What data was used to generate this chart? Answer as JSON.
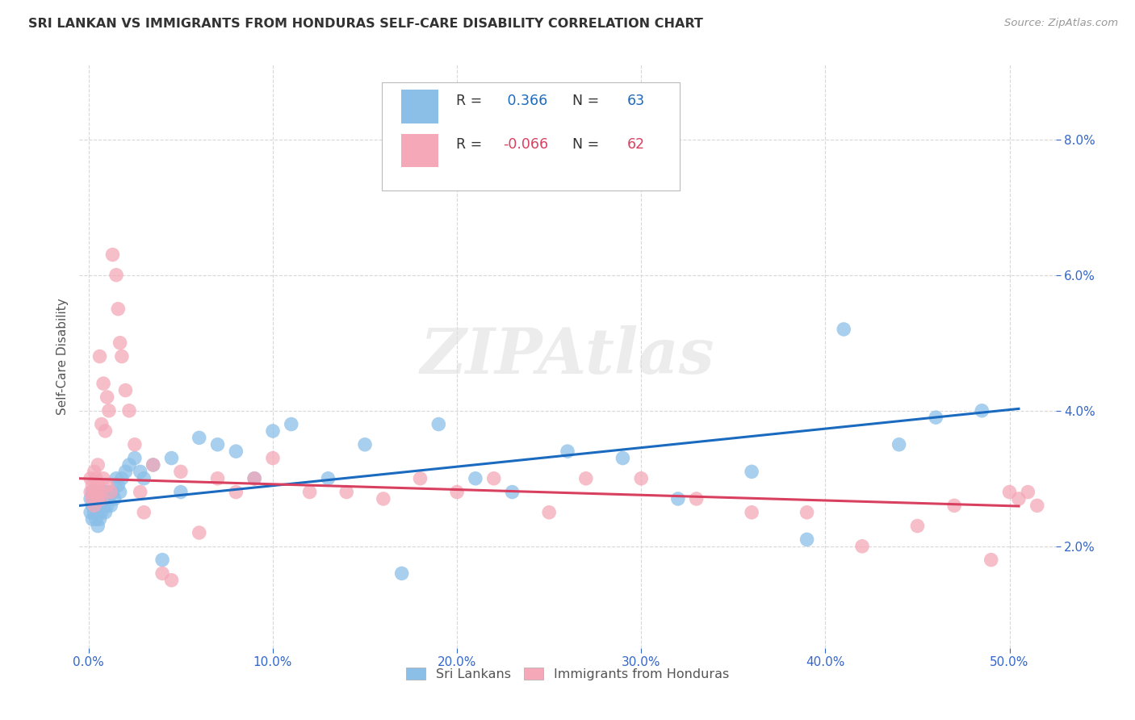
{
  "title": "SRI LANKAN VS IMMIGRANTS FROM HONDURAS SELF-CARE DISABILITY CORRELATION CHART",
  "source": "Source: ZipAtlas.com",
  "ylabel": "Self-Care Disability",
  "xlabel_ticks": [
    "0.0%",
    "10.0%",
    "20.0%",
    "30.0%",
    "40.0%",
    "50.0%"
  ],
  "xlabel_vals": [
    0.0,
    0.1,
    0.2,
    0.3,
    0.4,
    0.5
  ],
  "ylabel_ticks": [
    "2.0%",
    "4.0%",
    "6.0%",
    "8.0%"
  ],
  "ylabel_vals": [
    0.02,
    0.04,
    0.06,
    0.08
  ],
  "xlim": [
    -0.005,
    0.525
  ],
  "ylim": [
    0.005,
    0.091
  ],
  "sri_lankan_R": 0.366,
  "sri_lankan_N": 63,
  "honduras_R": -0.066,
  "honduras_N": 62,
  "sri_lankan_color": "#8bbfe8",
  "honduras_color": "#f4a8b8",
  "sri_lankan_line_color": "#1a6abf",
  "honduras_line_color": "#d94060",
  "legend_labels": [
    "Sri Lankans",
    "Immigrants from Honduras"
  ],
  "background_color": "#ffffff",
  "grid_color": "#d8d8d8",
  "title_color": "#333333",
  "tick_color": "#3366cc"
}
